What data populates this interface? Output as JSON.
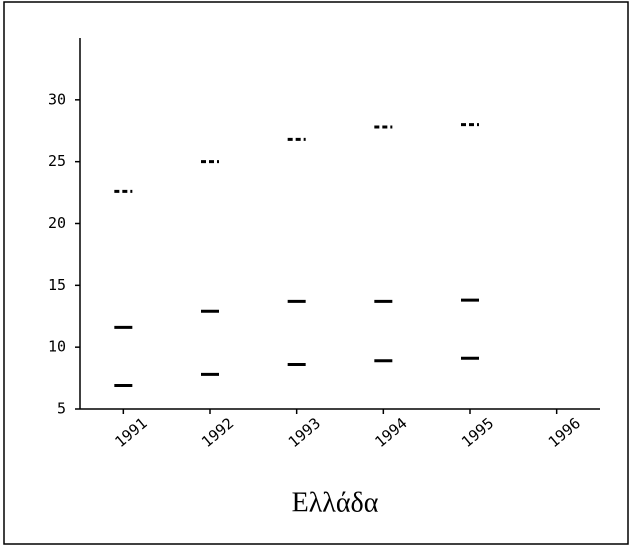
{
  "chart_data": {
    "type": "dash",
    "xlabel": "Ελλάδα",
    "categories": [
      "1991",
      "1992",
      "1993",
      "1994",
      "1995",
      "1996"
    ],
    "series": [
      {
        "color": "#000000",
        "dashed": true,
        "values": [
          22.6,
          25.0,
          26.8,
          27.8,
          28.0,
          null
        ]
      },
      {
        "color": "#000000",
        "dashed": false,
        "values": [
          11.6,
          12.9,
          13.7,
          13.7,
          13.8,
          null
        ]
      },
      {
        "color": "#000000",
        "dashed": false,
        "values": [
          6.9,
          7.8,
          8.6,
          8.9,
          9.1,
          null
        ]
      }
    ],
    "ylim": [
      5,
      35
    ],
    "yticks": [
      5,
      10,
      15,
      20,
      25,
      30
    ]
  }
}
